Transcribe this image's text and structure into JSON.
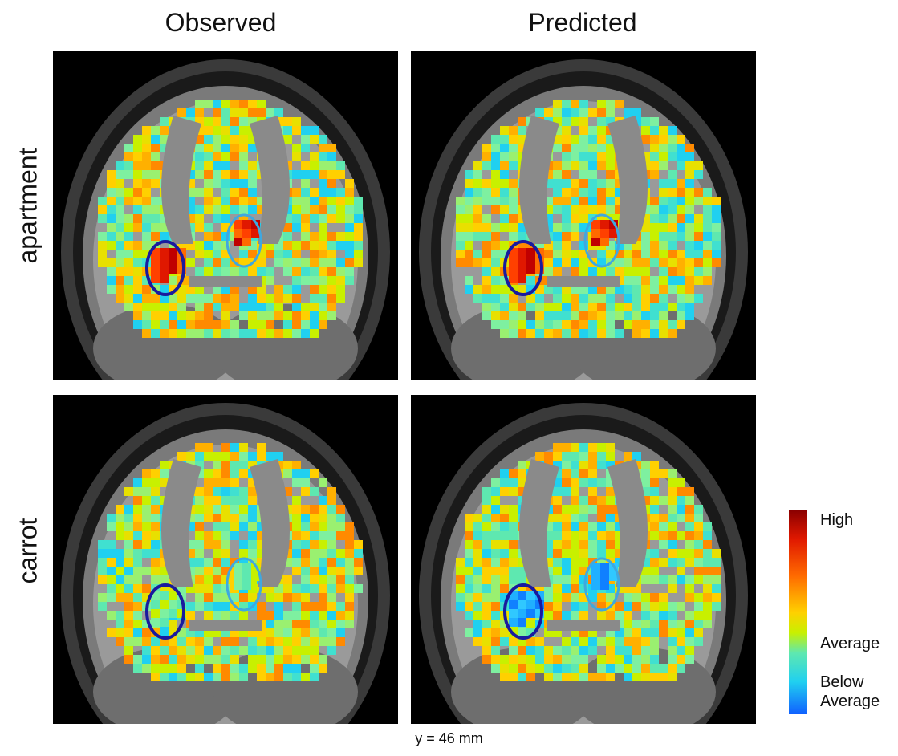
{
  "columns": {
    "observed": "Observed",
    "predicted": "Predicted"
  },
  "rows": {
    "apartment": "apartment",
    "carrot": "carrot"
  },
  "legend": {
    "high": "High",
    "average": "Average",
    "below_average": "Below\nAverage"
  },
  "slice_label": "y = 46 mm",
  "colors": {
    "dark_circle": "#1a1a9e",
    "light_circle": "#3fa8e0",
    "high": "#8b0000",
    "low": "#1060ff"
  },
  "panels": [
    {
      "row": "apartment",
      "column": "observed",
      "dark_roi_level": "high",
      "light_roi_level": "high"
    },
    {
      "row": "apartment",
      "column": "predicted",
      "dark_roi_level": "high",
      "light_roi_level": "high"
    },
    {
      "row": "carrot",
      "column": "observed",
      "dark_roi_level": "average",
      "light_roi_level": "average"
    },
    {
      "row": "carrot",
      "column": "predicted",
      "dark_roi_level": "below_average",
      "light_roi_level": "below_average"
    }
  ]
}
